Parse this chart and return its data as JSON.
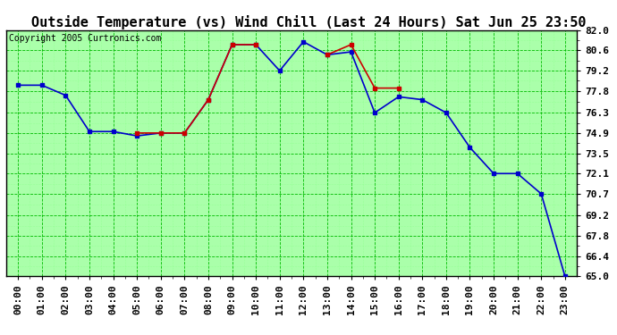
{
  "title": "Outside Temperature (vs) Wind Chill (Last 24 Hours) Sat Jun 25 23:50",
  "copyright": "Copyright 2005 Curtronics.com",
  "xlabel_ticks": [
    "00:00",
    "01:00",
    "02:00",
    "03:00",
    "04:00",
    "05:00",
    "06:00",
    "07:00",
    "08:00",
    "09:00",
    "10:00",
    "11:00",
    "12:00",
    "13:00",
    "14:00",
    "15:00",
    "16:00",
    "17:00",
    "18:00",
    "19:00",
    "20:00",
    "21:00",
    "22:00",
    "23:00"
  ],
  "x_values": [
    0,
    1,
    2,
    3,
    4,
    5,
    6,
    7,
    8,
    9,
    10,
    11,
    12,
    13,
    14,
    15,
    16,
    17,
    18,
    19,
    20,
    21,
    22,
    23
  ],
  "outside_temp": [
    78.2,
    78.2,
    77.5,
    75.0,
    75.0,
    74.7,
    74.9,
    74.9,
    77.2,
    81.0,
    81.0,
    79.2,
    81.2,
    80.3,
    80.5,
    76.3,
    77.4,
    77.2,
    76.3,
    73.9,
    72.1,
    72.1,
    70.7,
    65.0
  ],
  "wind_chill": [
    null,
    null,
    null,
    null,
    null,
    74.9,
    74.9,
    74.9,
    77.2,
    81.0,
    81.0,
    null,
    null,
    80.3,
    81.0,
    78.0,
    78.0,
    null,
    null,
    null,
    null,
    null,
    null,
    null
  ],
  "ylim": [
    65.0,
    82.0
  ],
  "yticks": [
    65.0,
    66.4,
    67.8,
    69.2,
    70.7,
    72.1,
    73.5,
    74.9,
    76.3,
    77.8,
    79.2,
    80.6,
    82.0
  ],
  "bg_color": "#ffffff",
  "plot_bg": "#aaffaa",
  "grid_major_color": "#00bb00",
  "grid_minor_color": "#88ff88",
  "outside_color": "#0000cc",
  "windchill_color": "#cc0000",
  "border_color": "#000000",
  "title_fontsize": 11,
  "copyright_fontsize": 7,
  "tick_fontsize": 8
}
